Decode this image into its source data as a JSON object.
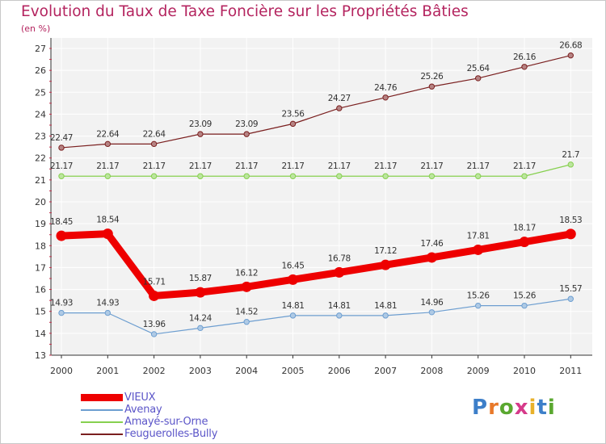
{
  "title": "Evolution du Taux de Taxe Foncière sur les Propriétés Bâties",
  "subtitle": "(en %)",
  "chart_data": {
    "type": "line",
    "title": "Evolution du Taux de Taxe Foncière sur les Propriétés Bâties",
    "subtitle": "(en %)",
    "xlabel": "",
    "ylabel": "",
    "x": [
      "2000",
      "2001",
      "2002",
      "2003",
      "2004",
      "2005",
      "2006",
      "2007",
      "2008",
      "2009",
      "2010",
      "2011"
    ],
    "ylim": [
      13,
      27
    ],
    "yticks": [
      13,
      14,
      15,
      16,
      17,
      18,
      19,
      20,
      21,
      22,
      23,
      24,
      25,
      26,
      27
    ],
    "grid": true,
    "legend_position": "bottom-left",
    "series": [
      {
        "name": "Feuguerolles-Bully",
        "color": "#7a1f1f",
        "emphasis": false,
        "values": [
          22.47,
          22.64,
          22.64,
          23.09,
          23.09,
          23.56,
          24.27,
          24.76,
          25.26,
          25.64,
          26.16,
          26.68
        ],
        "labels": [
          "22.47",
          "22.64",
          "22.64",
          "23.09",
          "23.09",
          "23.56",
          "24.27",
          "24.76",
          "25.26",
          "25.64",
          "26.16",
          "26.68"
        ]
      },
      {
        "name": "Amayé-sur-Orne",
        "color": "#86d04f",
        "emphasis": false,
        "values": [
          21.17,
          21.17,
          21.17,
          21.17,
          21.17,
          21.17,
          21.17,
          21.17,
          21.17,
          21.17,
          21.17,
          21.7
        ],
        "labels": [
          "21.17",
          "21.17",
          "21.17",
          "21.17",
          "21.17",
          "21.17",
          "21.17",
          "21.17",
          "21.17",
          "21.17",
          "21.17",
          "21.7"
        ]
      },
      {
        "name": "VIEUX",
        "color": "#ee0000",
        "emphasis": true,
        "values": [
          18.45,
          18.54,
          15.71,
          15.87,
          16.12,
          16.45,
          16.78,
          17.12,
          17.46,
          17.81,
          18.17,
          18.53
        ],
        "labels": [
          "18.45",
          "18.54",
          "15.71",
          "15.87",
          "16.12",
          "16.45",
          "16.78",
          "17.12",
          "17.46",
          "17.81",
          "18.17",
          "18.53"
        ]
      },
      {
        "name": "Avenay",
        "color": "#6d9ed0",
        "emphasis": false,
        "values": [
          14.93,
          14.93,
          13.96,
          14.24,
          14.52,
          14.81,
          14.81,
          14.81,
          14.96,
          15.26,
          15.26,
          15.57
        ],
        "labels": [
          "14.93",
          "14.93",
          "13.96",
          "14.24",
          "14.52",
          "14.81",
          "14.81",
          "14.81",
          "14.96",
          "15.26",
          "15.26",
          "15.57"
        ]
      }
    ]
  },
  "legend": [
    {
      "label": "VIEUX",
      "color": "#ee0000",
      "thick": true
    },
    {
      "label": "Avenay",
      "color": "#6d9ed0",
      "thick": false
    },
    {
      "label": "Amayé-sur-Orne",
      "color": "#86d04f",
      "thick": false
    },
    {
      "label": "Feuguerolles-Bully",
      "color": "#7a1f1f",
      "thick": false
    }
  ],
  "logo": {
    "letters": [
      "P",
      "r",
      "o",
      "x",
      "i",
      "t",
      "i"
    ],
    "colors": [
      "#3d7fc9",
      "#e8792a",
      "#5aa830",
      "#d63a8a",
      "#e8b12a",
      "#3d7fc9",
      "#5aa830"
    ]
  }
}
